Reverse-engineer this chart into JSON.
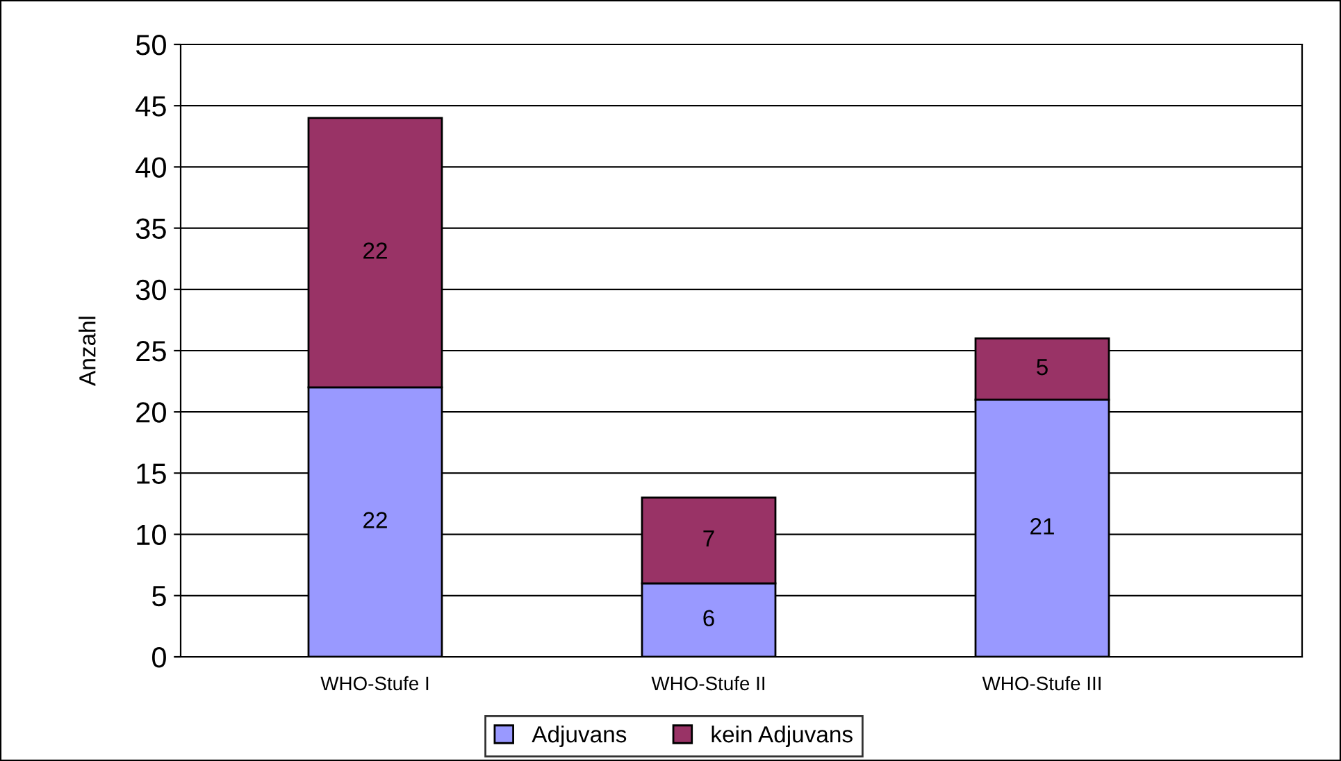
{
  "chart_data": {
    "type": "bar",
    "stacked": true,
    "ylabel": "Anzahl",
    "categories": [
      "WHO-Stufe I",
      "WHO-Stufe II",
      "WHO-Stufe III"
    ],
    "series": [
      {
        "name": "Adjuvans",
        "color": "#9999ff",
        "values": [
          22,
          6,
          21
        ]
      },
      {
        "name": "kein Adjuvans",
        "color": "#993366",
        "values": [
          22,
          7,
          5
        ]
      }
    ],
    "ylim": [
      0,
      50
    ],
    "yticks": [
      0,
      5,
      10,
      15,
      20,
      25,
      30,
      35,
      40,
      45,
      50
    ],
    "grid": "y",
    "legend": "bottom",
    "data_labels": true
  }
}
